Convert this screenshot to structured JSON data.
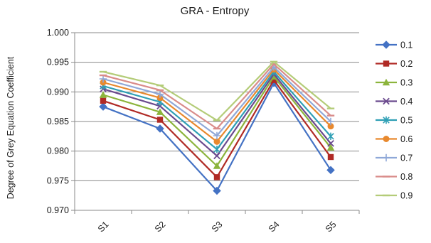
{
  "chart_data": {
    "type": "line",
    "title": "GRA - Entropy",
    "xlabel": "",
    "ylabel": "Degree of Grey Equation Coefficient",
    "categories": [
      "S1",
      "S2",
      "S3",
      "S4",
      "S5"
    ],
    "ylim": [
      0.97,
      1.0
    ],
    "yticks": [
      "0.970",
      "0.975",
      "0.980",
      "0.985",
      "0.990",
      "0.995",
      "1.000"
    ],
    "grid": "horizontal",
    "legend_position": "right",
    "series": [
      {
        "name": "0.1",
        "color": "#4472C4",
        "marker": "diamond",
        "values": [
          0.9875,
          0.9838,
          0.9733,
          0.9915,
          0.9768
        ]
      },
      {
        "name": "0.2",
        "color": "#B02A25",
        "marker": "square",
        "values": [
          0.9885,
          0.9853,
          0.9756,
          0.992,
          0.979
        ]
      },
      {
        "name": "0.3",
        "color": "#8CB43C",
        "marker": "triangle",
        "values": [
          0.9895,
          0.9866,
          0.9775,
          0.9926,
          0.9806
        ]
      },
      {
        "name": "0.4",
        "color": "#6B4A8E",
        "marker": "x",
        "values": [
          0.9905,
          0.9876,
          0.9792,
          0.993,
          0.9813
        ]
      },
      {
        "name": "0.5",
        "color": "#2E9FB5",
        "marker": "star",
        "values": [
          0.991,
          0.9883,
          0.9803,
          0.9934,
          0.9825
        ]
      },
      {
        "name": "0.6",
        "color": "#E8892E",
        "marker": "circle",
        "values": [
          0.9916,
          0.989,
          0.9816,
          0.9938,
          0.9842
        ]
      },
      {
        "name": "0.7",
        "color": "#8FA8D8",
        "marker": "plus",
        "values": [
          0.9922,
          0.9896,
          0.9826,
          0.9942,
          0.985
        ]
      },
      {
        "name": "0.8",
        "color": "#D98C8A",
        "marker": "dash",
        "values": [
          0.9928,
          0.9903,
          0.9838,
          0.9947,
          0.986
        ]
      },
      {
        "name": "0.9",
        "color": "#B4CC78",
        "marker": "dash",
        "values": [
          0.9934,
          0.9911,
          0.9852,
          0.9951,
          0.9872
        ]
      }
    ]
  }
}
